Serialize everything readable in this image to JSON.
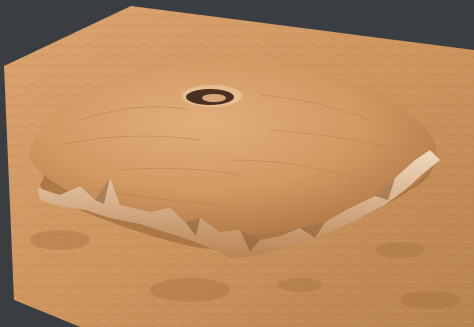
{
  "colors": {
    "background": "#3a3d41",
    "plain_light": "#d7a06c",
    "plain_mid": "#c48a56",
    "plain_dark": "#9c6a3e",
    "volcano_top": "#d9a472",
    "volcano_shadow": "#a26c3e",
    "cliff_light": "#eed3b4",
    "caldera_shadow": "#4a3020"
  }
}
